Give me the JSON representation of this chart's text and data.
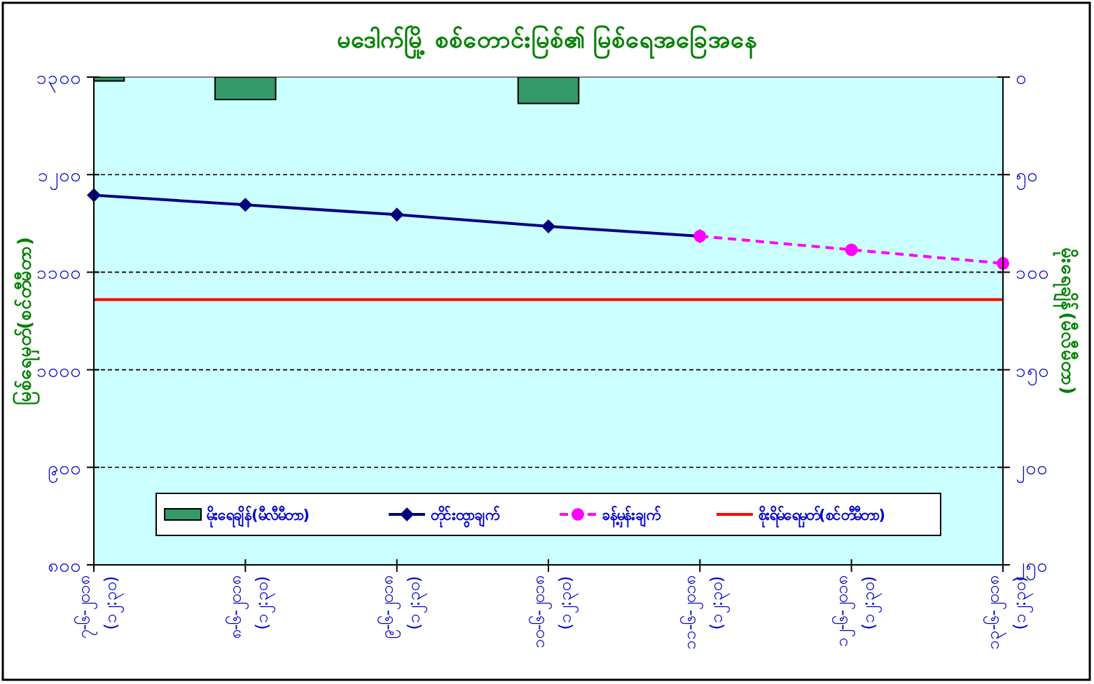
{
  "chart_data": {
    "type": "line",
    "title": "မဒေါက်မြို့ စစ်တောင်းမြစ်၏ မြစ်ရေအခြေအနေ",
    "ylabel": "မြစ်ရေမှတ်(စင်တီမီတာ)",
    "y2label": "မိုးရေချိန်(မီလီမီတာ)",
    "categories": [
      "၇-၆-၂၀၁၈ (၁၂:၃၀)",
      "၈-၆-၂၀၁၈ (၁၂:၃၀)",
      "၉-၆-၂၀၁၈ (၁၂:၃၀)",
      "၁၀-၆-၂၀၁၈ (၁၂:၃၀)",
      "၁၁-၆-၂၀၁၈ (၁၂:၃၀)",
      "၁၂-၆-၂၀၁၈ (၁၂:၃၀)",
      "၁၃-၆-၂၀၁၈ (၁၂:၃၀)"
    ],
    "ylim": [
      800,
      1300
    ],
    "yticks": [
      {
        "value": 800,
        "label": "၈၀၀"
      },
      {
        "value": 900,
        "label": "၉၀၀"
      },
      {
        "value": 1000,
        "label": "၁၀၀၀"
      },
      {
        "value": 1100,
        "label": "၁၁၀၀"
      },
      {
        "value": 1200,
        "label": "၁၂၀၀"
      },
      {
        "value": 1300,
        "label": "၁၃၀၀"
      }
    ],
    "y2lim": [
      250,
      0
    ],
    "y2ticks": [
      {
        "value": 0,
        "label": "၀"
      },
      {
        "value": 50,
        "label": "၅၀"
      },
      {
        "value": 100,
        "label": "၁၀၀"
      },
      {
        "value": 150,
        "label": "၁၅၀"
      },
      {
        "value": 200,
        "label": "၂၀၀"
      },
      {
        "value": 250,
        "label": "၂၅၀"
      }
    ],
    "grid": "y",
    "legend": "bottom",
    "series": [
      {
        "name": "မိုးရေချိန်(မီလီမီတာ)",
        "type": "bar",
        "axis": "y2",
        "color": "#339966",
        "values": [
          2,
          11.5,
          null,
          13.5,
          null,
          null,
          null
        ]
      },
      {
        "name": "တိုင်းထွာချက်",
        "color": "#000080",
        "marker": "diamond",
        "line_style": "solid",
        "values": [
          1179,
          1169,
          1159,
          1147,
          1137,
          null,
          null
        ]
      },
      {
        "name": "ခန့်မှန်းချက်",
        "color": "#ff00ff",
        "marker": "circle",
        "line_style": "dashed",
        "values": [
          null,
          null,
          null,
          null,
          1137,
          1123,
          1109
        ]
      },
      {
        "name": "စိုးရိမ်ရေမှတ်(စင်တီမီတာ)",
        "color": "#ff0000",
        "marker": "none",
        "line_style": "solid",
        "values": [
          1072,
          1072,
          1072,
          1072,
          1072,
          1072,
          1072
        ]
      }
    ]
  }
}
